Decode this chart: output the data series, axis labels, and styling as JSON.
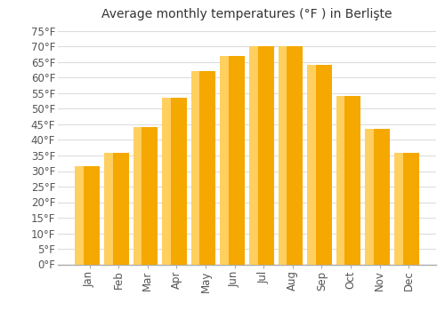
{
  "title": "Average monthly temperatures (°F ) in Berlişte",
  "months": [
    "Jan",
    "Feb",
    "Mar",
    "Apr",
    "May",
    "Jun",
    "Jul",
    "Aug",
    "Sep",
    "Oct",
    "Nov",
    "Dec"
  ],
  "values": [
    31.5,
    36.0,
    44.0,
    53.5,
    62.0,
    67.0,
    70.0,
    70.0,
    64.0,
    54.0,
    43.5,
    36.0
  ],
  "bar_color_dark": "#F5A800",
  "bar_color_light": "#FFD060",
  "bar_edge_color": "#E8A000",
  "background_color": "#ffffff",
  "grid_color": "#dddddd",
  "ylim": [
    0,
    77
  ],
  "yticks": [
    0,
    5,
    10,
    15,
    20,
    25,
    30,
    35,
    40,
    45,
    50,
    55,
    60,
    65,
    70,
    75
  ],
  "title_fontsize": 10,
  "tick_fontsize": 8.5,
  "font_family": "DejaVu Sans"
}
